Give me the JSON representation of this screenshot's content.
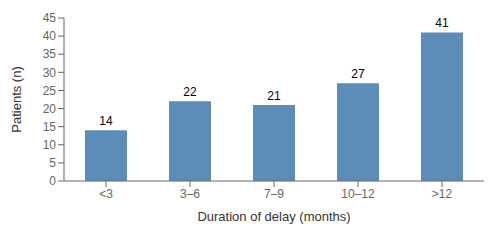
{
  "chart_data": {
    "type": "bar",
    "categories": [
      "<3",
      "3–6",
      "7–9",
      "10–12",
      ">12"
    ],
    "values": [
      14,
      22,
      21,
      27,
      41
    ],
    "color": "#5b8db8",
    "xlabel": "Duration of delay (months)",
    "ylabel": "Patients (n)",
    "ylim": [
      0,
      45
    ],
    "yticks": [
      0,
      5,
      10,
      15,
      20,
      25,
      30,
      35,
      40,
      45
    ],
    "grid": false,
    "data_labels": true
  }
}
